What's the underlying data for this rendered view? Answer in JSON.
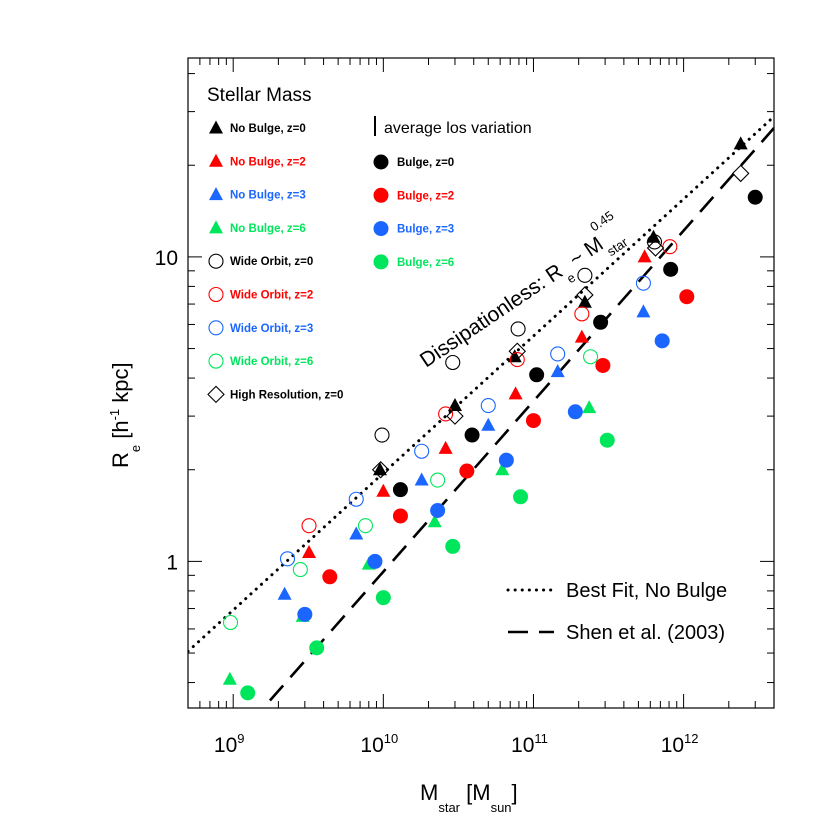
{
  "chart_data": {
    "type": "scatter",
    "title": "Stellar Mass",
    "xlabel": "M_star [M_sun]",
    "ylabel": "R_e [h^-1 kpc]",
    "xscale": "log",
    "yscale": "log",
    "xlim": [
      500000000.0,
      4000000000000.0
    ],
    "ylim": [
      0.33,
      45
    ],
    "x_ticks": [
      {
        "base": "10",
        "exp": "9",
        "value": 1000000000.0
      },
      {
        "base": "10",
        "exp": "10",
        "value": 10000000000.0
      },
      {
        "base": "10",
        "exp": "11",
        "value": 100000000000.0
      },
      {
        "base": "10",
        "exp": "12",
        "value": 1000000000000.0
      }
    ],
    "y_ticks": [
      {
        "label": "1",
        "value": 1
      },
      {
        "label": "10",
        "value": 10
      }
    ],
    "xlabel_parts": {
      "main": "M",
      "sub": "star",
      "bracket_open": " [M",
      "unit_sub": "sun",
      "bracket_close": "]"
    },
    "ylabel_parts": {
      "main": "R",
      "sub": "e",
      "bracket_open": " [h",
      "exp": "-1",
      "rest": " kpc]"
    },
    "annotation": {
      "text": "Dissipationless: R",
      "sub": "e",
      "tilde": " ~ M",
      "sub2": "star",
      "exp": "0.45"
    },
    "los_variation_label": "average los variation",
    "colors": {
      "z0": "#000000",
      "z2": "#ff0000",
      "z3": "#1a66ff",
      "z6": "#00e65c"
    },
    "series": [
      {
        "name": "No Bulge, z=0",
        "marker": "triangle",
        "filled": true,
        "color": "#000000",
        "points": [
          [
            9500000000.0,
            2.0
          ],
          [
            30000000000.0,
            3.25
          ],
          [
            75000000000.0,
            4.7
          ],
          [
            220000000000.0,
            7.1
          ],
          [
            630000000000.0,
            11.6
          ],
          [
            2400000000000.0,
            23.5
          ]
        ]
      },
      {
        "name": "No Bulge, z=2",
        "marker": "triangle",
        "filled": true,
        "color": "#ff0000",
        "points": [
          [
            3200000000.0,
            1.07
          ],
          [
            10000000000.0,
            1.7
          ],
          [
            26000000000.0,
            2.35
          ],
          [
            76000000000.0,
            3.55
          ],
          [
            210000000000.0,
            5.45
          ],
          [
            550000000000.0,
            10.0
          ]
        ]
      },
      {
        "name": "No Bulge, z=3",
        "marker": "triangle",
        "filled": true,
        "color": "#1a66ff",
        "points": [
          [
            2200000000.0,
            0.78
          ],
          [
            6600000000.0,
            1.23
          ],
          [
            18000000000.0,
            1.85
          ],
          [
            50000000000.0,
            2.8
          ],
          [
            145000000000.0,
            4.2
          ],
          [
            540000000000.0,
            6.6
          ]
        ]
      },
      {
        "name": "No Bulge, z=6",
        "marker": "triangle",
        "filled": true,
        "color": "#00e65c",
        "points": [
          [
            950000000.0,
            0.41
          ],
          [
            2900000000.0,
            0.66
          ],
          [
            8000000000.0,
            0.98
          ],
          [
            22000000000.0,
            1.35
          ],
          [
            62000000000.0,
            2.0
          ],
          [
            235000000000.0,
            3.2
          ]
        ]
      },
      {
        "name": "Bulge, z=0",
        "marker": "circle",
        "filled": true,
        "color": "#000000",
        "points": [
          [
            13000000000.0,
            1.72
          ],
          [
            39000000000.0,
            2.6
          ],
          [
            105000000000.0,
            4.1
          ],
          [
            280000000000.0,
            6.1
          ],
          [
            820000000000.0,
            9.1
          ],
          [
            3000000000000.0,
            15.7
          ]
        ]
      },
      {
        "name": "Bulge, z=2",
        "marker": "circle",
        "filled": true,
        "color": "#ff0000",
        "points": [
          [
            4400000000.0,
            0.89
          ],
          [
            13000000000.0,
            1.41
          ],
          [
            36000000000.0,
            1.98
          ],
          [
            100000000000.0,
            2.9
          ],
          [
            290000000000.0,
            4.4
          ],
          [
            1050000000000.0,
            7.4
          ]
        ]
      },
      {
        "name": "Bulge, z=3",
        "marker": "circle",
        "filled": true,
        "color": "#1a66ff",
        "points": [
          [
            3000000000.0,
            0.67
          ],
          [
            8800000000.0,
            1.0
          ],
          [
            23000000000.0,
            1.47
          ],
          [
            66000000000.0,
            2.15
          ],
          [
            190000000000.0,
            3.1
          ],
          [
            720000000000.0,
            5.3
          ]
        ]
      },
      {
        "name": "Bulge, z=6",
        "marker": "circle",
        "filled": true,
        "color": "#00e65c",
        "points": [
          [
            1250000000.0,
            0.37
          ],
          [
            3600000000.0,
            0.52
          ],
          [
            10000000000.0,
            0.76
          ],
          [
            29000000000.0,
            1.12
          ],
          [
            82000000000.0,
            1.63
          ],
          [
            310000000000.0,
            2.5
          ]
        ]
      },
      {
        "name": "Wide Orbit, z=0",
        "marker": "circle",
        "filled": false,
        "color": "#000000",
        "points": [
          [
            9800000000.0,
            2.6
          ],
          [
            29000000000.0,
            4.5
          ],
          [
            79000000000.0,
            5.8
          ],
          [
            220000000000.0,
            8.7
          ],
          [
            640000000000.0,
            11.2
          ]
        ]
      },
      {
        "name": "Wide Orbit, z=2",
        "marker": "circle",
        "filled": false,
        "color": "#ff0000",
        "points": [
          [
            3200000000.0,
            1.31
          ],
          [
            26000000000.0,
            3.05
          ],
          [
            78000000000.0,
            4.6
          ],
          [
            210000000000.0,
            6.5
          ],
          [
            810000000000.0,
            10.8
          ]
        ]
      },
      {
        "name": "Wide Orbit, z=3",
        "marker": "circle",
        "filled": false,
        "color": "#1a66ff",
        "points": [
          [
            2300000000.0,
            1.02
          ],
          [
            6600000000.0,
            1.6
          ],
          [
            18000000000.0,
            2.3
          ],
          [
            50000000000.0,
            3.25
          ],
          [
            145000000000.0,
            4.8
          ],
          [
            540000000000.0,
            8.2
          ]
        ]
      },
      {
        "name": "Wide Orbit, z=6",
        "marker": "circle",
        "filled": false,
        "color": "#00e65c",
        "points": [
          [
            960000000.0,
            0.63
          ],
          [
            2800000000.0,
            0.94
          ],
          [
            7600000000.0,
            1.31
          ],
          [
            23000000000.0,
            1.85
          ],
          [
            240000000000.0,
            4.7
          ]
        ]
      },
      {
        "name": "High Resolution, z=0",
        "marker": "diamond",
        "filled": false,
        "color": "#000000",
        "points": [
          [
            9600000000.0,
            2.0
          ],
          [
            30000000000.0,
            3.0
          ],
          [
            78000000000.0,
            4.9
          ],
          [
            220000000000.0,
            7.5
          ],
          [
            650000000000.0,
            10.7
          ],
          [
            2400000000000.0,
            18.8
          ]
        ]
      }
    ],
    "lines": [
      {
        "name": "Best Fit, No Bulge",
        "style": "dotted",
        "slope": 0.45,
        "anchor": [
          10000000000.0,
          1.95
        ]
      },
      {
        "name": "Shen et al. (2003)",
        "style": "dashed",
        "slope": 0.56,
        "anchor": [
          10000000000.0,
          0.925
        ]
      }
    ],
    "legend_order_left": [
      "No Bulge, z=0",
      "No Bulge, z=2",
      "No Bulge, z=3",
      "No Bulge, z=6",
      "Wide Orbit, z=0",
      "Wide Orbit, z=2",
      "Wide Orbit, z=3",
      "Wide Orbit, z=6",
      "High Resolution, z=0"
    ],
    "legend_order_right": [
      "Bulge, z=0",
      "Bulge, z=2",
      "Bulge, z=3",
      "Bulge, z=6"
    ]
  }
}
